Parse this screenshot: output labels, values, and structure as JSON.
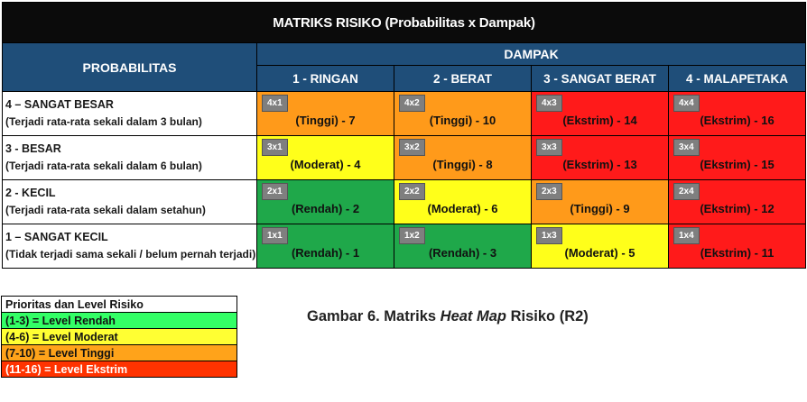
{
  "chart_data": {
    "type": "heatmap",
    "title": "MATRIKS RISIKO (Probabilitas x Dampak)",
    "row_header": "PROBABILITAS",
    "column_group_header": "DAMPAK",
    "columns": [
      "1 - RINGAN",
      "2 - BERAT",
      "3 - SANGAT BERAT",
      "4 - MALAPETAKA"
    ],
    "rows": [
      {
        "label": "4 – SANGAT BESAR",
        "desc": "(Terjadi rata-rata sekali dalam 3 bulan)",
        "cells": [
          {
            "code": "4x1",
            "text": "(Tinggi) - 7",
            "level": "tinggi",
            "score": 7
          },
          {
            "code": "4x2",
            "text": "(Tinggi) - 10",
            "level": "tinggi",
            "score": 10
          },
          {
            "code": "4x3",
            "text": "(Ekstrim) - 14",
            "level": "ekstrim",
            "score": 14
          },
          {
            "code": "4x4",
            "text": "(Ekstrim) - 16",
            "level": "ekstrim",
            "score": 16
          }
        ]
      },
      {
        "label": "3 - BESAR",
        "desc": "(Terjadi rata-rata sekali dalam 6 bulan)",
        "cells": [
          {
            "code": "3x1",
            "text": "(Moderat) - 4",
            "level": "moderat",
            "score": 4
          },
          {
            "code": "3x2",
            "text": "(Tinggi) - 8",
            "level": "tinggi",
            "score": 8
          },
          {
            "code": "3x3",
            "text": "(Ekstrim) - 13",
            "level": "ekstrim",
            "score": 13
          },
          {
            "code": "3x4",
            "text": "(Ekstrim) - 15",
            "level": "ekstrim",
            "score": 15
          }
        ]
      },
      {
        "label": "2 - KECIL",
        "desc": "(Terjadi rata-rata sekali dalam setahun)",
        "cells": [
          {
            "code": "2x1",
            "text": "(Rendah) - 2",
            "level": "rendah",
            "score": 2
          },
          {
            "code": "2x2",
            "text": "(Moderat) - 6",
            "level": "moderat",
            "score": 6
          },
          {
            "code": "2x3",
            "text": "(Tinggi) - 9",
            "level": "tinggi",
            "score": 9
          },
          {
            "code": "2x4",
            "text": "(Ekstrim) - 12",
            "level": "ekstrim",
            "score": 12
          }
        ]
      },
      {
        "label": "1 – SANGAT KECIL",
        "desc": "(Tidak terjadi sama sekali / belum pernah terjadi)",
        "cells": [
          {
            "code": "1x1",
            "text": "(Rendah) - 1",
            "level": "rendah",
            "score": 1
          },
          {
            "code": "1x2",
            "text": "(Rendah) - 3",
            "level": "rendah",
            "score": 3
          },
          {
            "code": "1x3",
            "text": "(Moderat) - 5",
            "level": "moderat",
            "score": 5
          },
          {
            "code": "1x4",
            "text": "(Ekstrim) - 11",
            "level": "ekstrim",
            "score": 11
          }
        ]
      }
    ]
  },
  "legend": {
    "title": "Prioritas dan Level Risiko",
    "items": [
      {
        "text": "(1-3) = Level Rendah",
        "level": "rendah",
        "color": "#33ff66"
      },
      {
        "text": "(4-6) = Level Moderat",
        "level": "moderat",
        "color": "#ffff33"
      },
      {
        "text": "(7-10) = Level Tinggi",
        "level": "tinggi",
        "color": "#ffa31a"
      },
      {
        "text": "(11-16) = Level Ekstrim",
        "level": "ekstrim",
        "color": "#ff3300"
      }
    ]
  },
  "caption": {
    "prefix": "Gambar 6. Matriks ",
    "italic": "Heat Map",
    "suffix": " Risiko (R2)"
  },
  "colors": {
    "rendah": "#1fa84a",
    "moderat": "#ffff1a",
    "tinggi": "#ff9a1a",
    "ekstrim": "#ff1a1a",
    "header": "#1f4e79",
    "title_bg": "#0b0b0b"
  }
}
